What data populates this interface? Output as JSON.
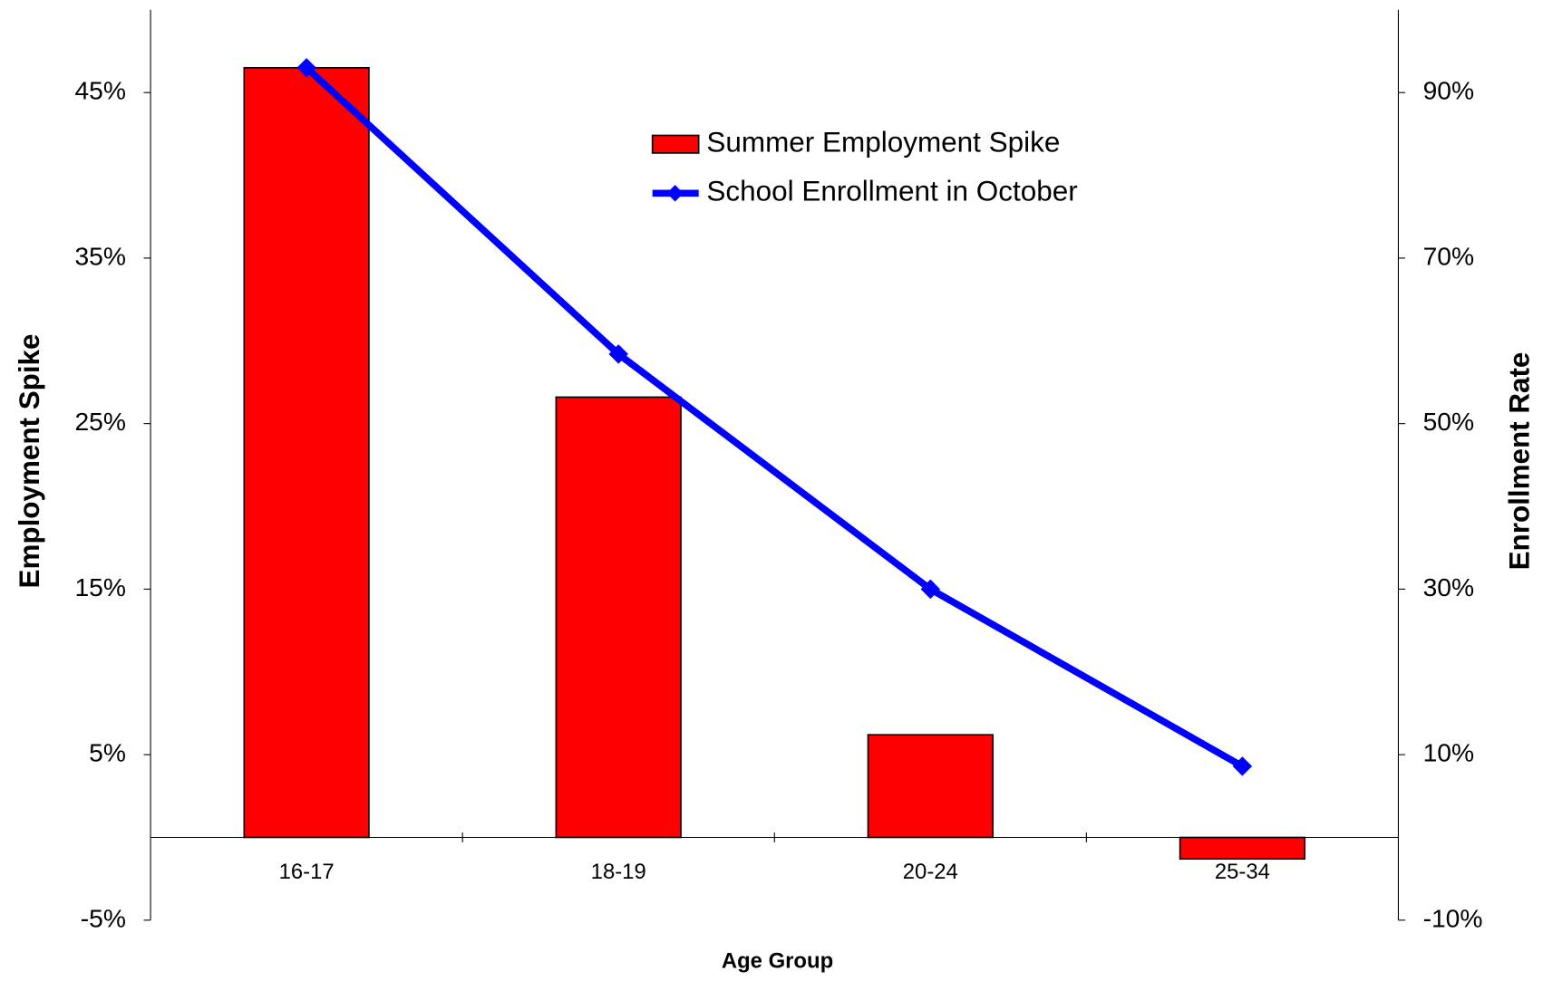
{
  "chart_data": {
    "type": "bar_line",
    "categories": [
      "16-17",
      "18-19",
      "20-24",
      "25-34"
    ],
    "x_label": "Age Group",
    "y_label": "Employment Spike",
    "y2_label": "Enrollment Rate",
    "series": [
      {
        "name": "Summer Employment Spike",
        "type": "bar",
        "color": "#ff0000",
        "values": [
          46.5,
          26.6,
          6.2,
          -1.3
        ]
      },
      {
        "name": "School Enrollment in October",
        "type": "line",
        "axis": "y2",
        "color": "#0000ff",
        "values": [
          93.0,
          58.4,
          30.0,
          8.6
        ]
      }
    ],
    "ylim": [
      -5,
      50
    ],
    "yticks": [
      {
        "value": -5,
        "label": "-5%"
      },
      {
        "value": 5,
        "label": "5%"
      },
      {
        "value": 15,
        "label": "15%"
      },
      {
        "value": 25,
        "label": "25%"
      },
      {
        "value": 35,
        "label": "35%"
      },
      {
        "value": 45,
        "label": "45%"
      }
    ],
    "y2lim": [
      -10,
      100
    ],
    "y2ticks": [
      {
        "value": -10,
        "label": "-10%"
      },
      {
        "value": 10,
        "label": "10%"
      },
      {
        "value": 30,
        "label": "30%"
      },
      {
        "value": 50,
        "label": "50%"
      },
      {
        "value": 70,
        "label": "70%"
      },
      {
        "value": 90,
        "label": "90%"
      }
    ],
    "grid": false
  }
}
